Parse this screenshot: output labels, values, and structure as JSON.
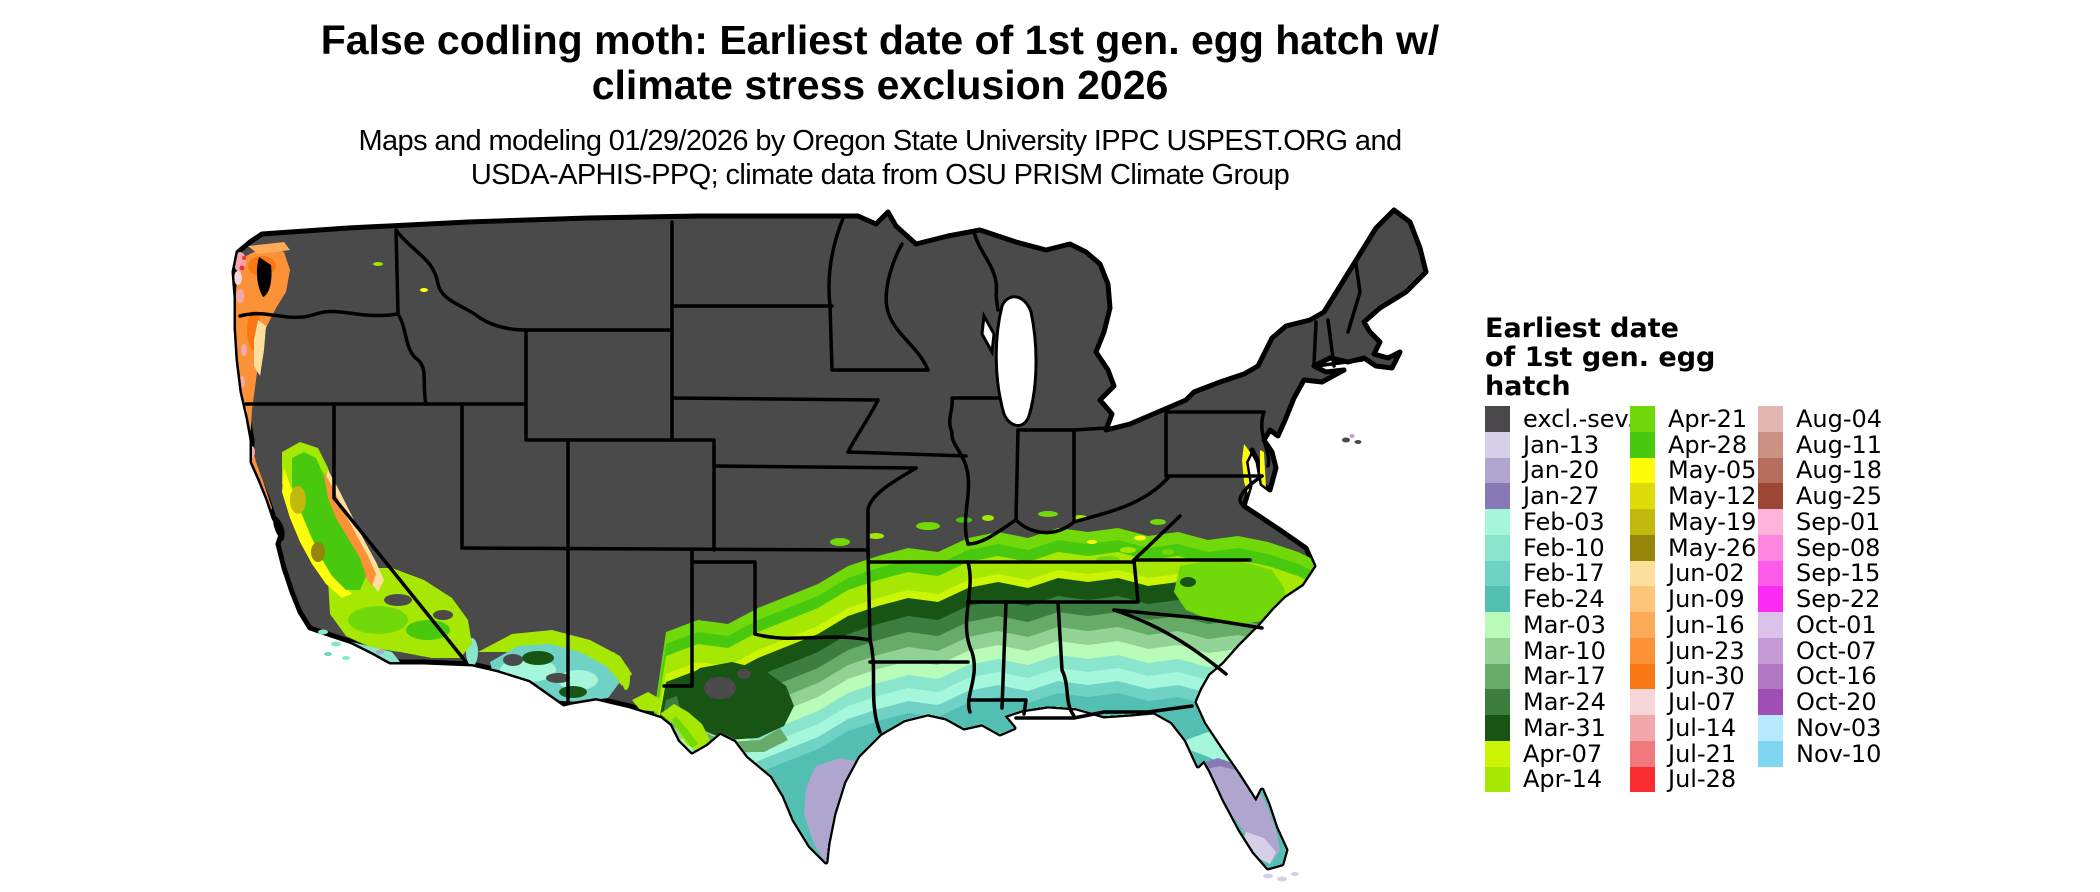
{
  "title": {
    "line1": "False codling moth: Earliest date of 1st gen. egg hatch w/",
    "line2": "climate stress exclusion 2026"
  },
  "subtitle": {
    "line1": "Maps and modeling 01/29/2026 by Oregon State University IPPC USPEST.ORG and",
    "line2": "USDA-APHIS-PPQ; climate data from OSU PRISM Climate Group"
  },
  "legend": {
    "title_lines": [
      "Earliest date",
      "of 1st gen. egg",
      "hatch"
    ],
    "columns": [
      {
        "entries": [
          {
            "label": "excl.-sev.",
            "color": "#4a484a"
          },
          {
            "label": "Jan-13",
            "color": "#d6cfe9"
          },
          {
            "label": "Jan-20",
            "color": "#b0a5ce"
          },
          {
            "label": "Jan-27",
            "color": "#8679b5"
          },
          {
            "label": "Feb-03",
            "color": "#a5f7dc"
          },
          {
            "label": "Feb-10",
            "color": "#8ae5cd"
          },
          {
            "label": "Feb-17",
            "color": "#6fd2c5"
          },
          {
            "label": "Feb-24",
            "color": "#52bfb2"
          },
          {
            "label": "Mar-03",
            "color": "#b9fcb9"
          },
          {
            "label": "Mar-10",
            "color": "#92d294"
          },
          {
            "label": "Mar-17",
            "color": "#66ab68"
          },
          {
            "label": "Mar-24",
            "color": "#3b7e40"
          },
          {
            "label": "Mar-31",
            "color": "#185414"
          },
          {
            "label": "Apr-07",
            "color": "#ccf405"
          },
          {
            "label": "Apr-14",
            "color": "#a7e704"
          }
        ]
      },
      {
        "entries": [
          {
            "label": "Apr-21",
            "color": "#71d90a"
          },
          {
            "label": "Apr-28",
            "color": "#48c90e"
          },
          {
            "label": "May-05",
            "color": "#fcfc0b"
          },
          {
            "label": "May-12",
            "color": "#dddc0a"
          },
          {
            "label": "May-19",
            "color": "#c1b90e"
          },
          {
            "label": "May-26",
            "color": "#96850b"
          },
          {
            "label": "Jun-02",
            "color": "#fcdf9d"
          },
          {
            "label": "Jun-09",
            "color": "#fcc67a"
          },
          {
            "label": "Jun-16",
            "color": "#fcac59"
          },
          {
            "label": "Jun-23",
            "color": "#fb9238"
          },
          {
            "label": "Jun-30",
            "color": "#fa7813"
          },
          {
            "label": "Jul-07",
            "color": "#f5d6d9"
          },
          {
            "label": "Jul-14",
            "color": "#f2a7aa"
          },
          {
            "label": "Jul-21",
            "color": "#f1787c"
          },
          {
            "label": "Jul-28",
            "color": "#fa2d33"
          }
        ]
      },
      {
        "entries": [
          {
            "label": "Aug-04",
            "color": "#e2b7af"
          },
          {
            "label": "Aug-11",
            "color": "#ca9184"
          },
          {
            "label": "Aug-18",
            "color": "#b56d5d"
          },
          {
            "label": "Aug-25",
            "color": "#9c4733"
          },
          {
            "label": "Sep-01",
            "color": "#feb4da"
          },
          {
            "label": "Sep-08",
            "color": "#fd86e1"
          },
          {
            "label": "Sep-15",
            "color": "#fd5be9"
          },
          {
            "label": "Sep-22",
            "color": "#fb2bf2"
          },
          {
            "label": "Oct-01",
            "color": "#dcc2e8"
          },
          {
            "label": "Oct-07",
            "color": "#c49bd5"
          },
          {
            "label": "Oct-16",
            "color": "#b178c4"
          },
          {
            "label": "Oct-20",
            "color": "#a04db5"
          },
          {
            "label": "Nov-03",
            "color": "#b6e9fb"
          },
          {
            "label": "Nov-10",
            "color": "#80d5f0"
          }
        ]
      }
    ]
  },
  "map": {
    "background": "#ffffff",
    "outline_color": "#000000",
    "water_color": "#ffffff",
    "palette": {
      "gray": "#4a4a4a",
      "black": "#000000",
      "white": "#ffffff",
      "jan13": "#d6cfe9",
      "jan20": "#b0a5ce",
      "jan27": "#8679b5",
      "feb03": "#a5f7dc",
      "feb10": "#8ae5cd",
      "feb17": "#6fd2c5",
      "feb24": "#52bfb2",
      "mar03": "#b9fcb9",
      "mar10": "#92d294",
      "mar17": "#66ab68",
      "mar24": "#3b7e40",
      "mar31": "#185414",
      "apr07": "#ccf405",
      "apr14": "#a7e704",
      "apr21": "#71d90a",
      "apr28": "#48c90e",
      "may05": "#fcfc0b",
      "may12": "#dddc0a",
      "may19": "#c1b90e",
      "may26": "#96850b",
      "jun02": "#fcdf9d",
      "jun09": "#fcc67a",
      "jun16": "#fcac59",
      "jun23": "#fb9238",
      "jun30": "#fa7813",
      "jul07": "#f5d6d9",
      "jul14": "#f2a7aa",
      "jul21": "#f1787c",
      "jul28": "#fa2d33",
      "oct07": "#c49bd5"
    }
  }
}
